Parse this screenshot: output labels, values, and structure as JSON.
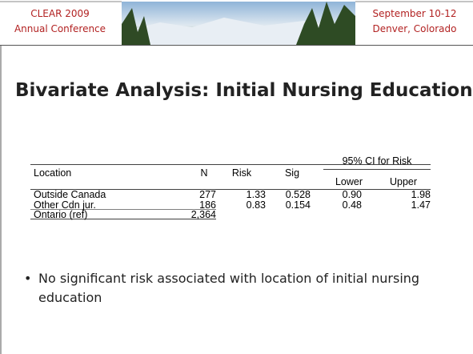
{
  "header": {
    "left": [
      "CLEAR 2009",
      "Annual Conference"
    ],
    "right": [
      "September 10-12",
      "Denver, Colorado"
    ]
  },
  "title": "Bivariate Analysis: Initial Nursing Education",
  "table": {
    "columns": [
      "Location",
      "N",
      "Risk",
      "Sig"
    ],
    "ci_header": "95% CI for Risk",
    "ci_columns": [
      "Lower",
      "Upper"
    ],
    "rows": [
      [
        "Outside Canada",
        "277",
        "1.33",
        "0.528",
        "0.90",
        "1.98"
      ],
      [
        "Other Cdn jur.",
        "186",
        "0.83",
        "0.154",
        "0.48",
        "1.47"
      ],
      [
        "Ontario (ref)",
        "2,364"
      ]
    ]
  },
  "bullets": [
    "No significant risk associated with location of initial nursing education"
  ]
}
